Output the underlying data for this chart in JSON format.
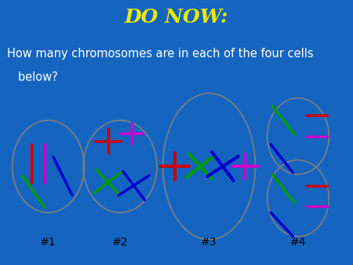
{
  "title": "DO NOW:",
  "subtitle_line1": "How many chromosomes are in each of the four cells",
  "subtitle_line2": "   below?",
  "title_color": "#EAEA00",
  "subtitle_color": "#FFFFFF",
  "bg_color": "#1565C0",
  "box_color": "#FFFFFF",
  "box_border": "#AAAAAA",
  "title_fontsize": 18,
  "subtitle_fontsize": 10.5,
  "labels": [
    "#1",
    "#2",
    "#3",
    "#4"
  ],
  "label_color": "#000000",
  "label_fontsize": 10
}
